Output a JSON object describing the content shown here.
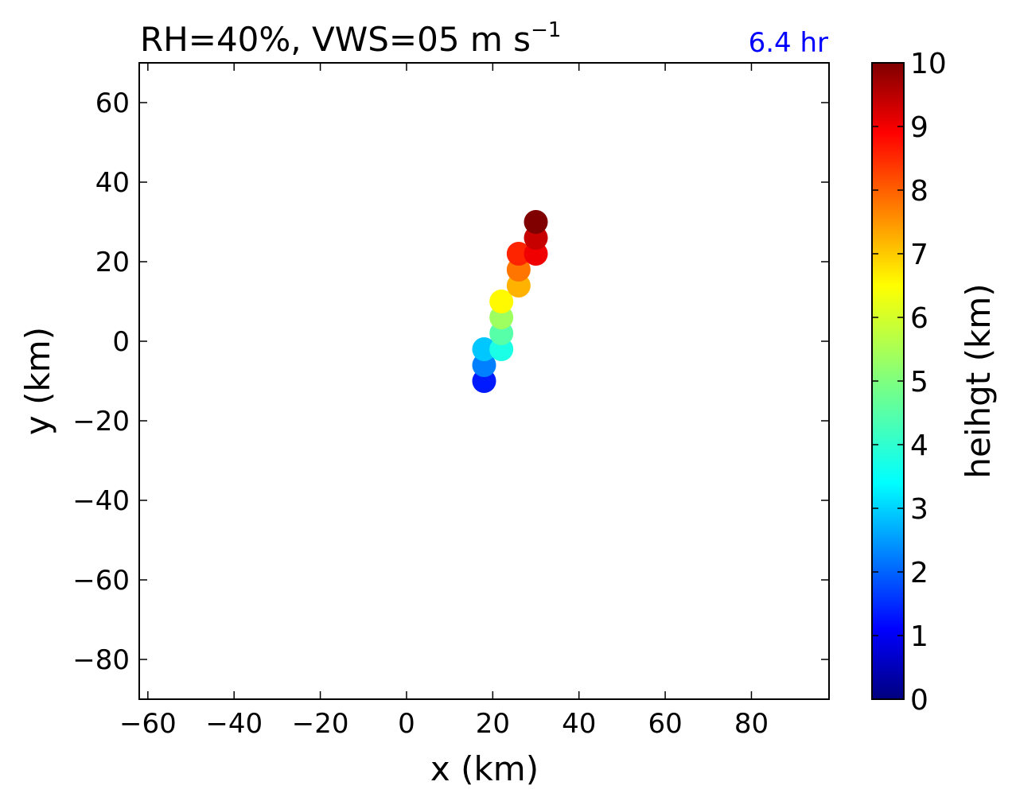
{
  "chart_data": {
    "type": "scatter",
    "title": "RH=40%, VWS=05 m s",
    "title_superscript": "−1",
    "time_label": "6.4 hr",
    "xlabel": "x (km)",
    "ylabel": "y (km)",
    "xlim": [
      -62,
      98
    ],
    "ylim": [
      -90,
      70
    ],
    "xticks": [
      -60,
      -40,
      -20,
      0,
      20,
      40,
      60,
      80
    ],
    "xtick_labels": [
      "−60",
      "−40",
      "−20",
      "0",
      "20",
      "40",
      "60",
      "80"
    ],
    "yticks": [
      60,
      40,
      20,
      0,
      -20,
      -40,
      -60,
      -80
    ],
    "ytick_labels": [
      "60",
      "40",
      "20",
      "0",
      "−20",
      "−40",
      "−60",
      "−80"
    ],
    "grid": false,
    "colormap": "jet",
    "colorbar": {
      "label": "heihgt (km)",
      "range": [
        0,
        10
      ],
      "ticks": [
        0,
        1,
        2,
        3,
        4,
        5,
        6,
        7,
        8,
        9,
        10
      ],
      "tick_labels": [
        "0",
        "1",
        "2",
        "3",
        "4",
        "5",
        "6",
        "7",
        "8",
        "9",
        "10"
      ]
    },
    "points": [
      {
        "x": 18,
        "y": -10,
        "height": 1.5
      },
      {
        "x": 18,
        "y": -6,
        "height": 2.5
      },
      {
        "x": 18,
        "y": -2,
        "height": 3.2
      },
      {
        "x": 22,
        "y": -2,
        "height": 4.0
      },
      {
        "x": 22,
        "y": 2,
        "height": 4.6
      },
      {
        "x": 22,
        "y": 6,
        "height": 5.3
      },
      {
        "x": 22,
        "y": 10,
        "height": 6.3
      },
      {
        "x": 26,
        "y": 14,
        "height": 7.0
      },
      {
        "x": 26,
        "y": 18,
        "height": 7.6
      },
      {
        "x": 26,
        "y": 22,
        "height": 8.4
      },
      {
        "x": 30,
        "y": 22,
        "height": 8.9
      },
      {
        "x": 30,
        "y": 26,
        "height": 9.3
      },
      {
        "x": 30,
        "y": 30,
        "height": 10.0
      }
    ]
  }
}
